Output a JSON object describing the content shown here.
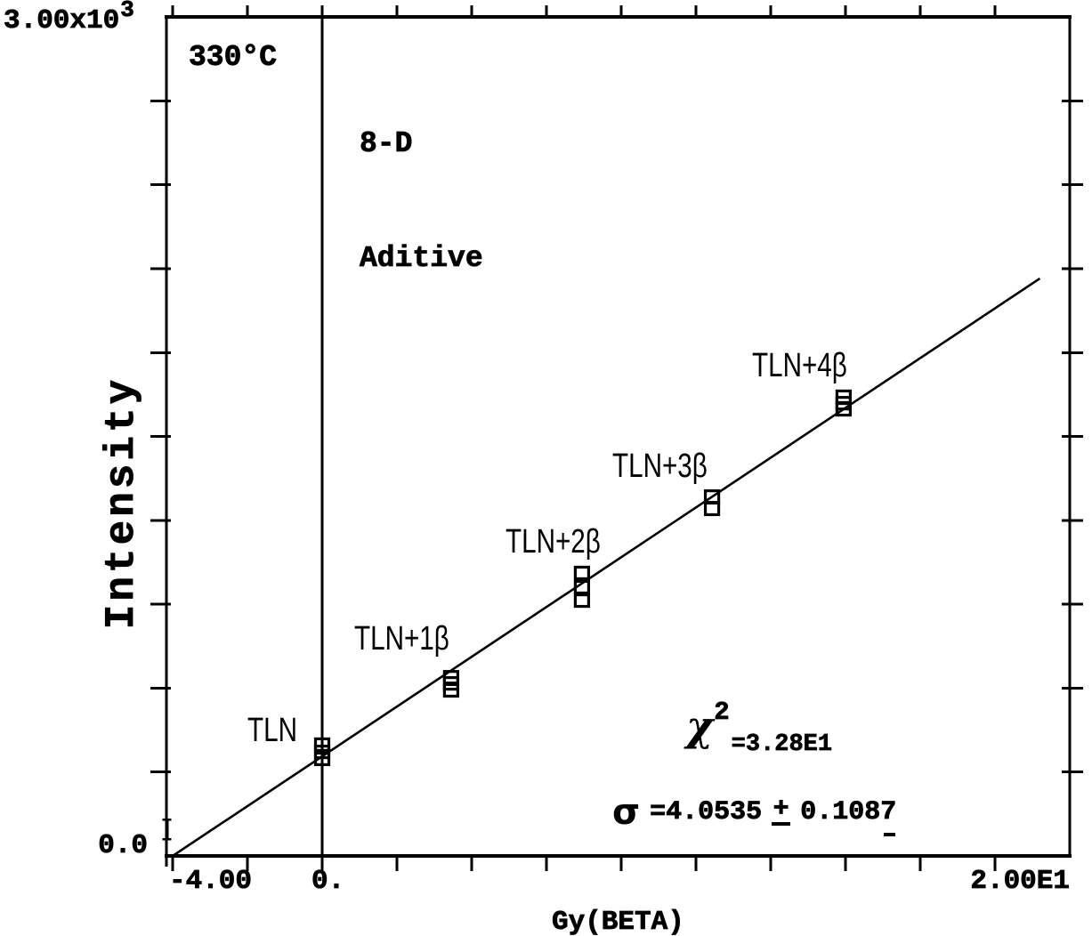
{
  "figure": {
    "background_color": "#ffffff",
    "ink_color": "#000000"
  },
  "axes": {
    "y_label": "Intensity",
    "y_max_mantissa": "3.00x10",
    "y_max_exponent": "3",
    "y_min_label": "0.0",
    "x_label": "Gy(BETA)",
    "x_tick_labels": [
      "-4.00",
      "0.",
      "2.00E1"
    ]
  },
  "annotations_text": {
    "temperature": "330°C",
    "sample": "8-D",
    "method": "Aditive"
  },
  "stats": {
    "chi_symbol": "χ",
    "chi_exponent": "2",
    "chi_value": "=3.28E1",
    "sigma_symbol": "σ",
    "sigma_value": "=4.0535",
    "plus_minus_plus": "+",
    "sigma_error": "0.1087"
  },
  "chart_data": {
    "type": "scatter",
    "title": "",
    "xlabel": "Gy(BETA)",
    "ylabel": "Intensity",
    "xlim": [
      -4.2,
      20
    ],
    "ylim": [
      0,
      3000
    ],
    "x_tick_step": 2,
    "y_tick_step": 300,
    "grid": false,
    "legend": false,
    "x_labeled_ticks": [
      {
        "x": -4,
        "label": "-4.00"
      },
      {
        "x": 0,
        "label": "0."
      },
      {
        "x": 20,
        "label": "2.00E1"
      }
    ],
    "y_labeled_ticks": [
      {
        "y": 3000,
        "label": "3.00x10^3"
      },
      {
        "y": 0,
        "label": "0.0"
      }
    ],
    "vertical_reference_line_x": 0,
    "fit_line": {
      "x1": -4.0,
      "y1": 0,
      "x2": 19.2,
      "y2": 2065
    },
    "equivalent_dose_marker": {
      "x": -4.15,
      "y": 95
    },
    "annotations": {
      "temperature": "330°C",
      "sample": "8-D",
      "method": "Aditive",
      "chi_squared": "3.28E1",
      "sigma_equivalent_dose": "4.0535",
      "sigma_error": "0.1087"
    },
    "series": [
      {
        "label": "TLN",
        "x": 0,
        "y_values": [
          347,
          372,
          398
        ]
      },
      {
        "label": "TLN+1β",
        "x": 3.45,
        "y_values": [
          592,
          617,
          639
        ]
      },
      {
        "label": "TLN+2β",
        "x": 6.95,
        "y_values": [
          913,
          961,
          1012
        ]
      },
      {
        "label": "TLN+3β",
        "x": 10.43,
        "y_values": [
          1241,
          1285
        ]
      },
      {
        "label": "TLN+4β",
        "x": 13.95,
        "y_values": [
          1597,
          1619,
          1642
        ]
      }
    ]
  }
}
